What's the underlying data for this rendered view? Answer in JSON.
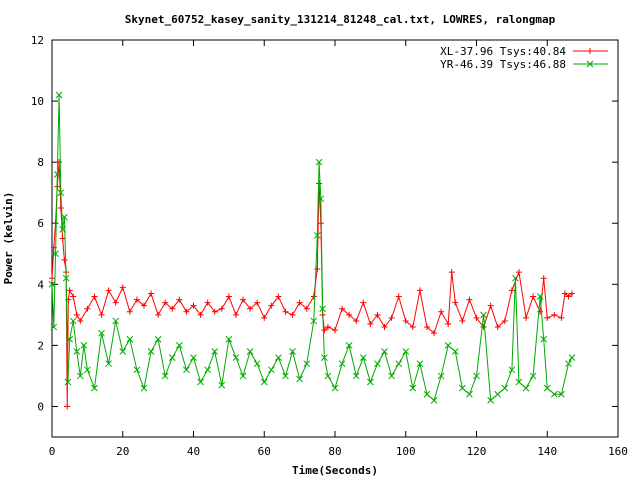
{
  "chart_data": {
    "type": "line",
    "title": "Skynet_60752_kasey_sanity_131214_81248_cal.txt, LOWRES, ralongmap",
    "xlabel": "Time(Seconds)",
    "ylabel": "Power (kelvin)",
    "xlim": [
      0,
      160
    ],
    "ylim": [
      -1,
      12
    ],
    "xticks": [
      0,
      20,
      40,
      60,
      80,
      100,
      120,
      140,
      160
    ],
    "yticks": [
      0,
      2,
      4,
      6,
      8,
      10,
      12
    ],
    "legend_position": "top-right",
    "grid": false,
    "series": [
      {
        "name": "XL-37.96 Tsys:40.84",
        "color": "#ff0000",
        "marker": "plus",
        "x": [
          0,
          0.5,
          1,
          1.5,
          2,
          2.5,
          3,
          3.5,
          4,
          4.3,
          4.6,
          5,
          6,
          7,
          8,
          10,
          12,
          14,
          16,
          18,
          20,
          22,
          24,
          26,
          28,
          30,
          32,
          34,
          36,
          38,
          40,
          42,
          44,
          46,
          48,
          50,
          52,
          54,
          56,
          58,
          60,
          62,
          64,
          66,
          68,
          70,
          72,
          74,
          75,
          75.5,
          76,
          76.5,
          77,
          78,
          80,
          82,
          84,
          86,
          88,
          90,
          92,
          94,
          96,
          98,
          100,
          102,
          104,
          106,
          108,
          110,
          112,
          113,
          114,
          116,
          118,
          120,
          122,
          124,
          126,
          128,
          130,
          132,
          134,
          136,
          138,
          139,
          140,
          142,
          144,
          145,
          146,
          147
        ],
        "y": [
          4.2,
          5.2,
          6.0,
          7.2,
          8.0,
          6.5,
          5.5,
          4.8,
          4.4,
          0.0,
          3.5,
          3.8,
          3.6,
          3.0,
          2.8,
          3.2,
          3.6,
          3.0,
          3.8,
          3.4,
          3.9,
          3.1,
          3.5,
          3.3,
          3.7,
          3.0,
          3.4,
          3.2,
          3.5,
          3.1,
          3.3,
          3.0,
          3.4,
          3.1,
          3.2,
          3.6,
          3.0,
          3.5,
          3.2,
          3.4,
          2.9,
          3.3,
          3.6,
          3.1,
          3.0,
          3.4,
          3.2,
          3.6,
          4.5,
          7.3,
          6.0,
          3.0,
          2.5,
          2.6,
          2.5,
          3.2,
          3.0,
          2.8,
          3.4,
          2.7,
          3.0,
          2.6,
          2.9,
          3.6,
          2.8,
          2.6,
          3.8,
          2.6,
          2.4,
          3.1,
          2.7,
          4.4,
          3.4,
          2.8,
          3.5,
          2.9,
          2.6,
          3.3,
          2.6,
          2.8,
          3.8,
          4.4,
          2.9,
          3.6,
          3.1,
          4.2,
          2.9,
          3.0,
          2.9,
          3.7,
          3.6,
          3.7
        ]
      },
      {
        "name": "YR-46.39 Tsys:46.88",
        "color": "#00aa00",
        "marker": "cross",
        "x": [
          0,
          0.5,
          1,
          1.5,
          2,
          2.5,
          3,
          3.5,
          4,
          4.5,
          5,
          6,
          7,
          8,
          9,
          10,
          12,
          14,
          16,
          18,
          20,
          22,
          24,
          26,
          28,
          30,
          32,
          34,
          36,
          38,
          40,
          42,
          44,
          46,
          48,
          50,
          52,
          54,
          56,
          58,
          60,
          62,
          64,
          66,
          68,
          70,
          72,
          74,
          75,
          75.5,
          76,
          76.5,
          77,
          78,
          80,
          82,
          84,
          86,
          88,
          90,
          92,
          94,
          96,
          98,
          100,
          102,
          104,
          106,
          108,
          110,
          112,
          114,
          116,
          118,
          120,
          122,
          124,
          126,
          128,
          130,
          131,
          132,
          134,
          136,
          138,
          139,
          140,
          142,
          144,
          146,
          147
        ],
        "y": [
          4.0,
          2.6,
          5.0,
          7.6,
          10.2,
          7.0,
          5.8,
          6.2,
          4.2,
          0.8,
          2.2,
          2.8,
          1.8,
          1.0,
          2.0,
          1.2,
          0.6,
          2.4,
          1.4,
          2.8,
          1.8,
          2.2,
          1.2,
          0.6,
          1.8,
          2.2,
          1.0,
          1.6,
          2.0,
          1.2,
          1.6,
          0.8,
          1.2,
          1.8,
          0.7,
          2.2,
          1.6,
          1.0,
          1.8,
          1.4,
          0.8,
          1.2,
          1.6,
          1.0,
          1.8,
          0.9,
          1.4,
          2.8,
          5.6,
          8.0,
          6.8,
          3.2,
          1.6,
          1.0,
          0.6,
          1.4,
          2.0,
          1.0,
          1.6,
          0.8,
          1.4,
          1.8,
          1.0,
          1.4,
          1.8,
          0.6,
          1.4,
          0.4,
          0.2,
          1.0,
          2.0,
          1.8,
          0.6,
          0.4,
          1.0,
          3.0,
          0.2,
          0.4,
          0.6,
          1.2,
          4.2,
          0.8,
          0.6,
          1.0,
          3.6,
          2.2,
          0.6,
          0.4,
          0.4,
          1.4,
          1.6
        ]
      }
    ]
  }
}
